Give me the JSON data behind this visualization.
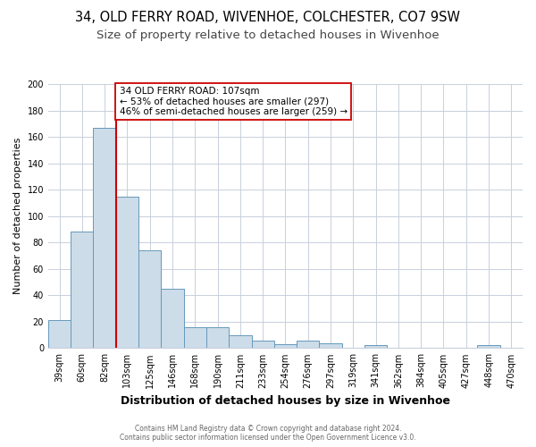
{
  "title": "34, OLD FERRY ROAD, WIVENHOE, COLCHESTER, CO7 9SW",
  "subtitle": "Size of property relative to detached houses in Wivenhoe",
  "xlabel": "Distribution of detached houses by size in Wivenhoe",
  "ylabel": "Number of detached properties",
  "bar_labels": [
    "39sqm",
    "60sqm",
    "82sqm",
    "103sqm",
    "125sqm",
    "146sqm",
    "168sqm",
    "190sqm",
    "211sqm",
    "233sqm",
    "254sqm",
    "276sqm",
    "297sqm",
    "319sqm",
    "341sqm",
    "362sqm",
    "384sqm",
    "405sqm",
    "427sqm",
    "448sqm",
    "470sqm"
  ],
  "bar_values": [
    21,
    88,
    167,
    115,
    74,
    45,
    16,
    16,
    10,
    6,
    3,
    6,
    4,
    0,
    2,
    0,
    0,
    0,
    0,
    2,
    0
  ],
  "bar_color": "#ccdce8",
  "bar_edge_color": "#6699bb",
  "vline_index": 2.5,
  "vline_color": "#cc0000",
  "annotation_title": "34 OLD FERRY ROAD: 107sqm",
  "annotation_line1": "← 53% of detached houses are smaller (297)",
  "annotation_line2": "46% of semi-detached houses are larger (259) →",
  "annotation_box_color": "#ffffff",
  "annotation_box_edge_color": "#cc0000",
  "ylim": [
    0,
    200
  ],
  "yticks": [
    0,
    20,
    40,
    60,
    80,
    100,
    120,
    140,
    160,
    180,
    200
  ],
  "footer_line1": "Contains HM Land Registry data © Crown copyright and database right 2024.",
  "footer_line2": "Contains public sector information licensed under the Open Government Licence v3.0.",
  "background_color": "#ffffff",
  "grid_color": "#c8d0dc",
  "title_fontsize": 10.5,
  "subtitle_fontsize": 9.5,
  "xlabel_fontsize": 9,
  "ylabel_fontsize": 8,
  "tick_fontsize": 7,
  "footer_fontsize": 5.5,
  "annotation_fontsize": 7.5
}
